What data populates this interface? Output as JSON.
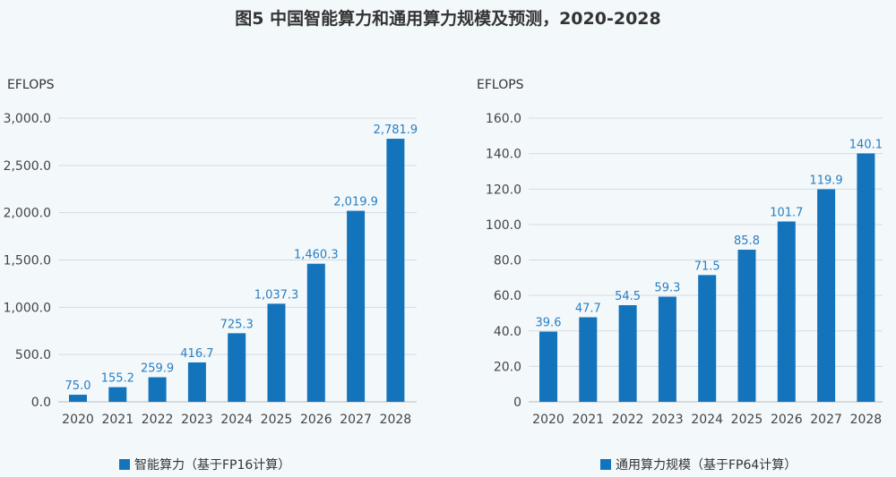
{
  "title": "图5 中国智能算力和通用算力规模及预测，2020-2028",
  "bar_color": "#1474bb",
  "label_color": "#2a7fc1",
  "chart_data": [
    {
      "type": "bar",
      "ylabel": "EFLOPS",
      "categories": [
        "2020",
        "2021",
        "2022",
        "2023",
        "2024",
        "2025",
        "2026",
        "2027",
        "2028"
      ],
      "series": [
        {
          "name": "智能算力（基于FP16计算）",
          "values": [
            75.0,
            155.2,
            259.9,
            416.7,
            725.3,
            1037.3,
            1460.3,
            2019.9,
            2781.9
          ]
        }
      ],
      "data_labels": [
        "75.0",
        "155.2",
        "259.9",
        "416.7",
        "725.3",
        "1,037.3",
        "1,460.3",
        "2,019.9",
        "2,781.9"
      ],
      "yticks": [
        "0.0",
        "500.0",
        "1,000.0",
        "1,500.0",
        "2,000.0",
        "2,500.0",
        "3,000.0"
      ],
      "ylim": [
        0,
        3000
      ],
      "grid": true,
      "legend": "bottom"
    },
    {
      "type": "bar",
      "ylabel": "EFLOPS",
      "categories": [
        "2020",
        "2021",
        "2022",
        "2023",
        "2024",
        "2025",
        "2026",
        "2027",
        "2028"
      ],
      "series": [
        {
          "name": "通用算力规模（基于FP64计算）",
          "values": [
            39.6,
            47.7,
            54.5,
            59.3,
            71.5,
            85.8,
            101.7,
            119.9,
            140.1
          ]
        }
      ],
      "data_labels": [
        "39.6",
        "47.7",
        "54.5",
        "59.3",
        "71.5",
        "85.8",
        "101.7",
        "119.9",
        "140.1"
      ],
      "yticks": [
        "0",
        "20.0",
        "40.0",
        "60.0",
        "80.0",
        "100.0",
        "120.0",
        "140.0",
        "160.0"
      ],
      "ylim": [
        0,
        160
      ],
      "grid": true,
      "legend": "bottom"
    }
  ]
}
